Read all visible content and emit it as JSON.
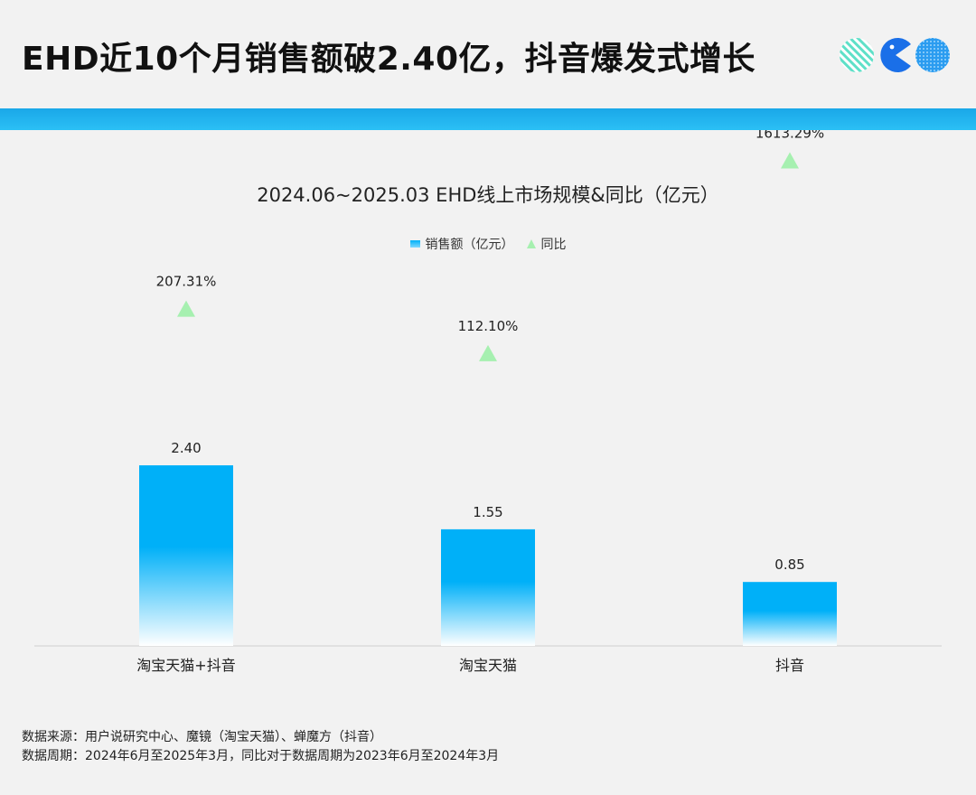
{
  "header": {
    "title": "EHD近10个月销售额破2.40亿，抖音爆发式增长"
  },
  "brand": {
    "bar_color": "#1aa7e8",
    "logo_colors": [
      "#5ee0c8",
      "#1a6fe8",
      "#2b9cf0"
    ],
    "logo_icons": [
      "striped-circle-icon",
      "pacman-icon",
      "dotted-circle-icon"
    ]
  },
  "chart_data": {
    "type": "bar",
    "title": "2024.06~2025.03 EHD线上市场规模&同比（亿元）",
    "categories": [
      "淘宝天猫+抖音",
      "淘宝天猫",
      "抖音"
    ],
    "series": [
      {
        "name": "销售额（亿元）",
        "values": [
          2.4,
          1.55,
          0.85
        ],
        "labels": [
          "2.40",
          "1.55",
          "0.85"
        ],
        "color": "#00b0f8",
        "kind": "bar"
      },
      {
        "name": "同比",
        "values": [
          207.31,
          112.1,
          1613.29
        ],
        "labels": [
          "207.31%",
          "112.10%",
          "1613.29%"
        ],
        "color": "#a6f0b0",
        "kind": "marker"
      }
    ],
    "legend": "top-center",
    "grid": false
  },
  "footer": {
    "source": "数据来源：用户说研究中心、魔镜（淘宝天猫）、蝉魔方（抖音）",
    "period": "数据周期：2024年6月至2025年3月，同比对于数据周期为2023年6月至2024年3月"
  }
}
